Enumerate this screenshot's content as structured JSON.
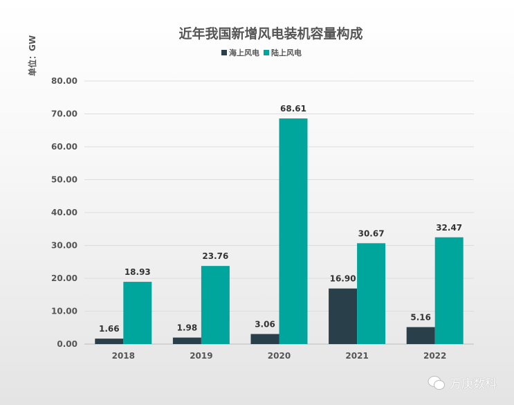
{
  "chart_data": {
    "type": "bar",
    "title": "近年我国新增风电装机容量构成",
    "ylabel": "单位：GW",
    "categories": [
      "2018",
      "2019",
      "2020",
      "2021",
      "2022"
    ],
    "series": [
      {
        "name": "海上风电",
        "color": "#29404a",
        "values": [
          1.66,
          1.98,
          3.06,
          16.9,
          5.16
        ]
      },
      {
        "name": "陆上风电",
        "color": "#00a59c",
        "values": [
          18.93,
          23.76,
          68.61,
          30.67,
          32.47
        ]
      }
    ],
    "ylim": [
      0,
      80
    ],
    "yticks": [
      "0.00",
      "10.00",
      "20.00",
      "30.00",
      "40.00",
      "50.00",
      "60.00",
      "70.00",
      "80.00"
    ],
    "grid": true,
    "legend": "top"
  },
  "watermark": "万庚数科"
}
